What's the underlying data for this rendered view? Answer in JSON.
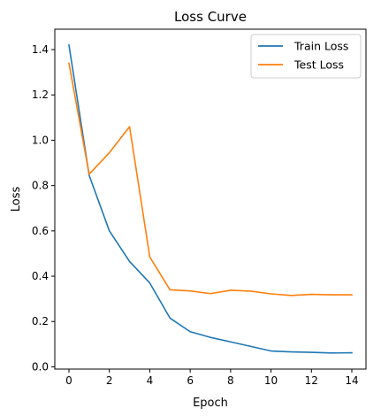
{
  "chart_data": {
    "type": "line",
    "title": "Loss Curve",
    "xlabel": "Epoch",
    "ylabel": "Loss",
    "xlim": [
      -0.7,
      14.7
    ],
    "ylim": [
      -0.01,
      1.49
    ],
    "x_ticks": [
      0,
      2,
      4,
      6,
      8,
      10,
      12,
      14
    ],
    "y_ticks": [
      0.0,
      0.2,
      0.4,
      0.6,
      0.8,
      1.0,
      1.2,
      1.4
    ],
    "grid": false,
    "legend_position": "top-right",
    "x": [
      0,
      1,
      2,
      3,
      4,
      5,
      6,
      7,
      8,
      9,
      10,
      11,
      12,
      13,
      14
    ],
    "series": [
      {
        "name": "Train Loss",
        "color": "#1f77b4",
        "values": [
          1.42,
          0.845,
          0.6,
          0.465,
          0.37,
          0.215,
          0.155,
          0.13,
          0.11,
          0.09,
          0.07,
          0.066,
          0.064,
          0.061,
          0.062
        ]
      },
      {
        "name": "Test Loss",
        "color": "#ff7f0e",
        "values": [
          1.34,
          0.85,
          0.945,
          1.06,
          0.485,
          0.34,
          0.335,
          0.323,
          0.338,
          0.334,
          0.322,
          0.315,
          0.32,
          0.318,
          0.318
        ]
      }
    ]
  }
}
